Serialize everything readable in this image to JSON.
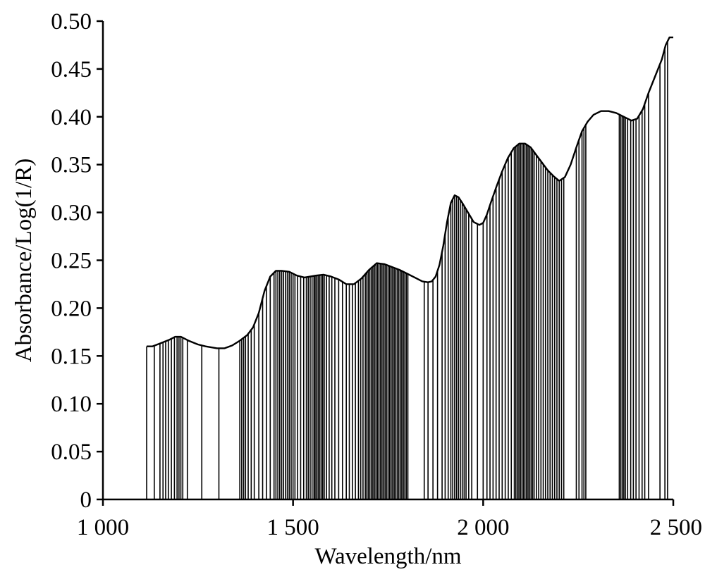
{
  "chart_data": {
    "type": "line",
    "title": "",
    "xlabel": "Wavelength/nm",
    "ylabel": "Absorbance/Log(1/R)",
    "xlim": [
      1000,
      2500
    ],
    "ylim": [
      0,
      0.5
    ],
    "x_ticks": [
      1000,
      1500,
      2000,
      2500
    ],
    "x_tick_labels": [
      "1 000",
      "1 500",
      "2 000",
      "2 500"
    ],
    "y_ticks": [
      0,
      0.05,
      0.1,
      0.15,
      0.2,
      0.25,
      0.3,
      0.35,
      0.4,
      0.45,
      0.5
    ],
    "y_tick_labels": [
      "0",
      "0.05",
      "0.10",
      "0.15",
      "0.20",
      "0.25",
      "0.30",
      "0.35",
      "0.40",
      "0.45",
      "0.50"
    ],
    "grid": false,
    "series": [
      {
        "x": [
          1115,
          1130,
          1150,
          1175,
          1190,
          1205,
          1225,
          1250,
          1270,
          1300,
          1320,
          1340,
          1360,
          1380,
          1395,
          1410,
          1425,
          1440,
          1455,
          1470,
          1490,
          1510,
          1530,
          1560,
          1580,
          1600,
          1620,
          1640,
          1660,
          1680,
          1700,
          1720,
          1740,
          1760,
          1780,
          1800,
          1820,
          1840,
          1855,
          1865,
          1875,
          1885,
          1895,
          1905,
          1915,
          1925,
          1935,
          1945,
          1960,
          1975,
          1990,
          2000,
          2010,
          2020,
          2035,
          2050,
          2065,
          2080,
          2095,
          2110,
          2125,
          2140,
          2155,
          2170,
          2185,
          2200,
          2215,
          2230,
          2245,
          2260,
          2275,
          2290,
          2310,
          2330,
          2350,
          2370,
          2390,
          2405,
          2420,
          2435,
          2450,
          2460,
          2470,
          2480,
          2490,
          2500
        ],
        "y": [
          0.16,
          0.16,
          0.163,
          0.167,
          0.17,
          0.17,
          0.166,
          0.162,
          0.16,
          0.158,
          0.158,
          0.161,
          0.166,
          0.172,
          0.18,
          0.195,
          0.218,
          0.233,
          0.239,
          0.239,
          0.238,
          0.234,
          0.232,
          0.234,
          0.235,
          0.233,
          0.23,
          0.225,
          0.225,
          0.231,
          0.24,
          0.247,
          0.246,
          0.243,
          0.24,
          0.236,
          0.232,
          0.228,
          0.227,
          0.228,
          0.233,
          0.245,
          0.265,
          0.29,
          0.31,
          0.318,
          0.316,
          0.31,
          0.3,
          0.29,
          0.287,
          0.289,
          0.298,
          0.31,
          0.327,
          0.343,
          0.357,
          0.367,
          0.372,
          0.372,
          0.368,
          0.36,
          0.352,
          0.344,
          0.338,
          0.333,
          0.337,
          0.35,
          0.368,
          0.385,
          0.395,
          0.402,
          0.406,
          0.406,
          0.404,
          0.4,
          0.396,
          0.398,
          0.408,
          0.425,
          0.44,
          0.45,
          0.46,
          0.475,
          0.483,
          0.483
        ]
      }
    ],
    "selected_wavelengths": [
      1115,
      1135,
      1150,
      1158,
      1165,
      1172,
      1180,
      1188,
      1195,
      1200,
      1205,
      1210,
      1222,
      1260,
      1305,
      1360,
      1365,
      1370,
      1375,
      1382,
      1390,
      1398,
      1410,
      1420,
      1430,
      1440,
      1450,
      1455,
      1460,
      1465,
      1470,
      1475,
      1480,
      1485,
      1490,
      1495,
      1500,
      1505,
      1512,
      1520,
      1528,
      1535,
      1540,
      1545,
      1550,
      1555,
      1558,
      1562,
      1566,
      1570,
      1574,
      1578,
      1582,
      1588,
      1595,
      1602,
      1610,
      1620,
      1630,
      1640,
      1648,
      1656,
      1664,
      1672,
      1678,
      1684,
      1690,
      1694,
      1698,
      1702,
      1706,
      1710,
      1714,
      1718,
      1722,
      1726,
      1730,
      1734,
      1738,
      1742,
      1746,
      1750,
      1754,
      1758,
      1762,
      1766,
      1770,
      1774,
      1778,
      1782,
      1786,
      1790,
      1794,
      1798,
      1802,
      1845,
      1855,
      1868,
      1880,
      1892,
      1900,
      1908,
      1915,
      1920,
      1925,
      1930,
      1935,
      1940,
      1945,
      1950,
      1955,
      1962,
      1970,
      1985,
      2000,
      2010,
      2018,
      2026,
      2034,
      2042,
      2050,
      2058,
      2066,
      2074,
      2082,
      2086,
      2090,
      2094,
      2098,
      2102,
      2106,
      2110,
      2114,
      2118,
      2122,
      2126,
      2130,
      2134,
      2140,
      2146,
      2152,
      2158,
      2164,
      2170,
      2176,
      2182,
      2188,
      2194,
      2200,
      2206,
      2212,
      2245,
      2252,
      2260,
      2265,
      2270,
      2358,
      2362,
      2366,
      2370,
      2374,
      2380,
      2388,
      2395,
      2402,
      2410,
      2418,
      2425,
      2435,
      2465,
      2478,
      2485
    ]
  }
}
